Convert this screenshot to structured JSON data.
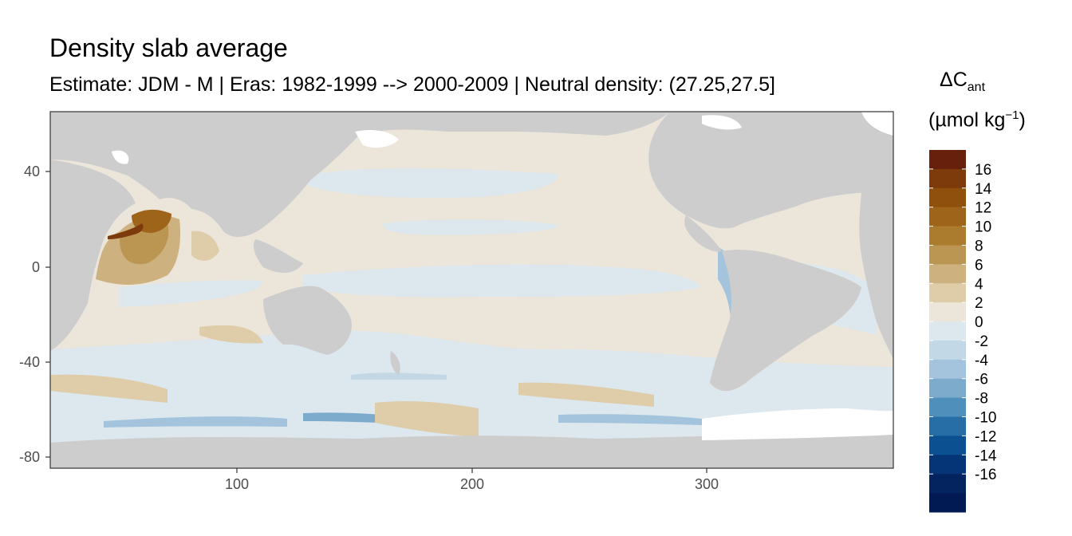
{
  "title": "Density slab average",
  "subtitle": "Estimate: JDM - M | Eras: 1982-1999 --> 2000-2009 | Neutral density: (27.25,27.5]",
  "legend": {
    "title_main": "ΔC",
    "title_sub": "ant",
    "unit_main": "(µmol kg",
    "unit_sup": "−1",
    "unit_close": ")",
    "labels": [
      "16",
      "14",
      "12",
      "10",
      "8",
      "6",
      "4",
      "2",
      "0",
      "-2",
      "-4",
      "-6",
      "-8",
      "-10",
      "-12",
      "-14",
      "-16"
    ],
    "colors": [
      "#67200b",
      "#7d3a0a",
      "#8f500d",
      "#9e6419",
      "#ab7b2e",
      "#bb9552",
      "#cdb17f",
      "#dfcca9",
      "#ece5da",
      "#dce7ee",
      "#c2d8e6",
      "#a3c4dc",
      "#7cabcc",
      "#4f8fbb",
      "#276ea6",
      "#0b5090",
      "#053477",
      "#03245f",
      "#021a54"
    ]
  },
  "axes": {
    "x_ticks": [
      "100",
      "200",
      "300"
    ],
    "y_ticks": [
      "40",
      "0",
      "-40",
      "-80"
    ]
  },
  "map_regions": {
    "land_color": "#cdcdcd",
    "nodata_color": "#ffffff",
    "features": [
      "arabian-sea-high",
      "north-atlantic-low",
      "north-atlantic-high",
      "southern-ocean-negative-band",
      "pacific-positive-tongues"
    ]
  }
}
